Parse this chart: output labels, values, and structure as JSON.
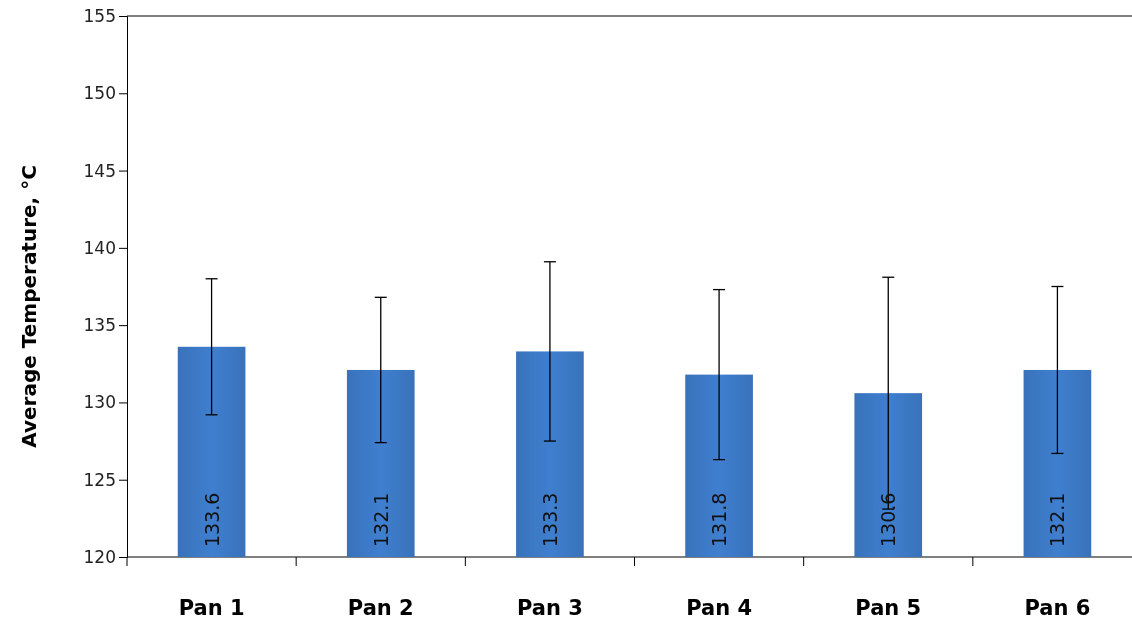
{
  "chart_data": {
    "type": "bar",
    "ylabel": "Average Temperature, °C",
    "categories": [
      "Pan 1",
      "Pan 2",
      "Pan 3",
      "Pan 4",
      "Pan 5",
      "Pan 6"
    ],
    "values": [
      133.6,
      132.1,
      133.3,
      131.8,
      130.6,
      132.1
    ],
    "errors": [
      4.4,
      4.7,
      5.8,
      5.5,
      7.5,
      5.4
    ],
    "color": "#3f7fcf",
    "ylim": [
      120,
      155
    ],
    "yticks": [
      120,
      125,
      130,
      135,
      140,
      145,
      150,
      155
    ],
    "data_labels": true,
    "grid": false
  }
}
